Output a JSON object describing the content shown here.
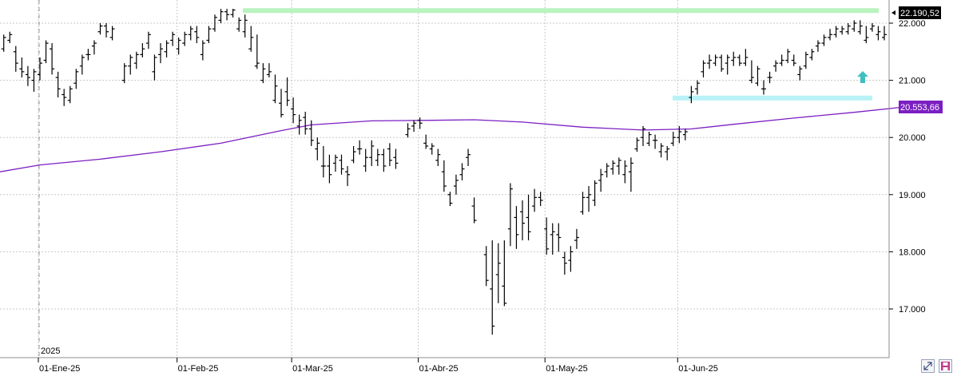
{
  "colors": {
    "ohlc": "#000000",
    "ma": "#7b1fc2",
    "resistance": "#b9f3bf",
    "support": "#b8f2f7",
    "arrow": "#3fbfc0",
    "grid": "#c8c8c8",
    "price_badge": "#000000",
    "ma_badge": "#7b1fc2"
  },
  "icons": {
    "arrow": "up-arrow-icon",
    "expand": "diagonal-arrows-icon",
    "save": "save-icon"
  },
  "chart_data": {
    "type": "ohlc",
    "title": "",
    "xlabel": "",
    "ylabel": "",
    "ylim": [
      16350,
      22550
    ],
    "y_ticks": [
      "17.000",
      "18.000",
      "19.000",
      "20.000",
      "21.000",
      "22.000"
    ],
    "y_tick_values": [
      17000,
      18000,
      19000,
      20000,
      21000,
      22000
    ],
    "x_ticks": [
      "01-Ene-25",
      "01-Feb-25",
      "01-Mar-25",
      "01-Abr-25",
      "01-May-25",
      "01-Jun-25"
    ],
    "year_label": "2025",
    "grid": true,
    "last_price_label": "22.190,52",
    "ma_label": "20.553,66",
    "resistance_level": 22220,
    "support_level": 20690,
    "series": [
      {
        "type": "ohlc",
        "values": [
          [
            -7,
            21500,
            21720,
            21300,
            21550
          ],
          [
            -6,
            21550,
            21800,
            21500,
            21750
          ],
          [
            -5,
            21700,
            21850,
            21650,
            21800
          ],
          [
            -4,
            21500,
            21600,
            21150,
            21300
          ],
          [
            -3,
            21200,
            21400,
            21050,
            21150
          ],
          [
            -2,
            21100,
            21250,
            20900,
            21050
          ],
          [
            -1,
            21000,
            21200,
            20800,
            21150
          ],
          [
            0,
            21100,
            21400,
            21000,
            21300
          ],
          [
            1,
            21350,
            21700,
            21300,
            21650
          ],
          [
            2,
            21550,
            21650,
            21100,
            21200
          ],
          [
            3,
            21050,
            21150,
            20700,
            20850
          ],
          [
            4,
            20750,
            20850,
            20550,
            20700
          ],
          [
            5,
            20650,
            20900,
            20600,
            20850
          ],
          [
            6,
            20950,
            21200,
            20850,
            21150
          ],
          [
            7,
            21250,
            21450,
            21100,
            21400
          ],
          [
            8,
            21450,
            21550,
            21350,
            21450
          ],
          [
            9,
            21600,
            21700,
            21450,
            21650
          ],
          [
            10,
            21850,
            22000,
            21800,
            21950
          ],
          [
            11,
            21950,
            22000,
            21750,
            21850
          ],
          [
            12,
            21750,
            21950,
            21700,
            21900
          ],
          [
            14,
            21000,
            21300,
            20950,
            21250
          ],
          [
            15,
            21250,
            21450,
            21100,
            21400
          ],
          [
            16,
            21300,
            21500,
            21200,
            21450
          ],
          [
            17,
            21450,
            21650,
            21400,
            21550
          ],
          [
            18,
            21650,
            21850,
            21550,
            21800
          ],
          [
            19,
            21150,
            21450,
            21000,
            21400
          ],
          [
            20,
            21450,
            21650,
            21300,
            21550
          ],
          [
            21,
            21500,
            21700,
            21400,
            21650
          ],
          [
            22,
            21700,
            21850,
            21600,
            21800
          ],
          [
            23,
            21550,
            21750,
            21450,
            21700
          ],
          [
            24,
            21650,
            21850,
            21600,
            21800
          ],
          [
            25,
            21800,
            21950,
            21700,
            21900
          ],
          [
            26,
            21850,
            21950,
            21650,
            21750
          ],
          [
            27,
            21450,
            21700,
            21350,
            21650
          ],
          [
            28,
            21700,
            21950,
            21650,
            21900
          ],
          [
            29,
            21900,
            22150,
            21850,
            22100
          ],
          [
            30,
            22050,
            22250,
            22000,
            22200
          ],
          [
            31,
            22200,
            22250,
            22050,
            22150
          ],
          [
            32,
            22150,
            22250,
            22100,
            22230
          ],
          [
            33,
            21900,
            22100,
            21850,
            22050
          ],
          [
            34,
            21850,
            22150,
            21750,
            22050
          ],
          [
            35,
            21550,
            21950,
            21500,
            21750
          ],
          [
            36,
            21250,
            21800,
            21200,
            21300
          ],
          [
            37,
            21000,
            21300,
            20950,
            21200
          ],
          [
            38,
            21100,
            21300,
            21050,
            21150
          ],
          [
            39,
            20650,
            21100,
            20600,
            20900
          ],
          [
            40,
            20600,
            20850,
            20350,
            20400
          ],
          [
            41,
            20800,
            21050,
            20550,
            20650
          ],
          [
            42,
            20500,
            20700,
            20250,
            20400
          ],
          [
            43,
            20200,
            20400,
            20050,
            20300
          ],
          [
            44,
            20350,
            20450,
            20050,
            20150
          ],
          [
            45,
            20150,
            20300,
            19850,
            19950
          ],
          [
            46,
            19800,
            20000,
            19600,
            19900
          ],
          [
            47,
            19500,
            19850,
            19300,
            19500
          ],
          [
            48,
            19500,
            19700,
            19200,
            19350
          ],
          [
            49,
            19550,
            19700,
            19400,
            19650
          ],
          [
            50,
            19600,
            19700,
            19350,
            19450
          ],
          [
            51,
            19400,
            19500,
            19150,
            19350
          ],
          [
            52,
            19600,
            19850,
            19550,
            19750
          ],
          [
            53,
            19800,
            19950,
            19700,
            19800
          ],
          [
            54,
            19500,
            19800,
            19400,
            19650
          ],
          [
            55,
            19650,
            19950,
            19500,
            19850
          ],
          [
            56,
            19600,
            19800,
            19500,
            19700
          ],
          [
            57,
            19700,
            19800,
            19400,
            19500
          ],
          [
            58,
            19800,
            19900,
            19500,
            19600
          ],
          [
            59,
            19650,
            19800,
            19450,
            19550
          ],
          [
            61,
            20050,
            20250,
            20000,
            20150
          ],
          [
            62,
            20200,
            20300,
            20100,
            20250
          ],
          [
            63,
            20300,
            20350,
            20150,
            20250
          ],
          [
            64,
            19900,
            20050,
            19800,
            19850
          ],
          [
            65,
            19800,
            19900,
            19700,
            19850
          ],
          [
            66,
            19600,
            19800,
            19500,
            19700
          ],
          [
            67,
            19400,
            19600,
            19050,
            19150
          ],
          [
            68,
            19000,
            19050,
            18800,
            18850
          ],
          [
            69,
            19150,
            19350,
            19000,
            19250
          ],
          [
            70,
            19350,
            19550,
            19250,
            19450
          ],
          [
            71,
            19650,
            19800,
            19500,
            19700
          ],
          [
            72,
            18800,
            18950,
            18500,
            18550
          ],
          [
            74,
            17950,
            18100,
            17400,
            17500
          ],
          [
            75,
            17350,
            18200,
            16550,
            16700
          ],
          [
            76,
            17600,
            18150,
            17100,
            17800
          ],
          [
            77,
            17400,
            18200,
            17050,
            17100
          ],
          [
            78,
            18400,
            19200,
            18100,
            19100
          ],
          [
            79,
            18600,
            18800,
            18050,
            18300
          ],
          [
            80,
            18700,
            18900,
            18200,
            18500
          ],
          [
            81,
            18600,
            19000,
            18200,
            18350
          ],
          [
            82,
            18800,
            19100,
            18700,
            18950
          ],
          [
            83,
            18950,
            19050,
            18800,
            18900
          ],
          [
            84,
            18400,
            18600,
            17950,
            18050
          ],
          [
            85,
            18300,
            18500,
            17950,
            18350
          ],
          [
            86,
            18300,
            18500,
            18000,
            18250
          ],
          [
            87,
            17900,
            18000,
            17600,
            17800
          ],
          [
            88,
            17850,
            18100,
            17650,
            18000
          ],
          [
            89,
            18200,
            18400,
            18050,
            18250
          ],
          [
            90,
            18700,
            19050,
            18650,
            18950
          ],
          [
            91,
            18950,
            19150,
            18700,
            19000
          ],
          [
            92,
            18900,
            19250,
            18800,
            19200
          ],
          [
            93,
            19250,
            19450,
            19050,
            19350
          ],
          [
            94,
            19400,
            19550,
            19300,
            19500
          ],
          [
            95,
            19450,
            19600,
            19350,
            19550
          ],
          [
            96,
            19500,
            19650,
            19350,
            19600
          ],
          [
            97,
            19350,
            19600,
            19200,
            19500
          ],
          [
            98,
            19400,
            19650,
            19050,
            19550
          ],
          [
            99,
            19800,
            20000,
            19750,
            19950
          ],
          [
            100,
            20000,
            20200,
            19850,
            20150
          ],
          [
            101,
            19900,
            20100,
            19850,
            20050
          ],
          [
            102,
            19950,
            20050,
            19800,
            19950
          ],
          [
            103,
            19750,
            19900,
            19650,
            19850
          ],
          [
            104,
            19750,
            19850,
            19600,
            19800
          ],
          [
            105,
            19900,
            20100,
            19850,
            20000
          ],
          [
            106,
            20000,
            20200,
            19900,
            20100
          ],
          [
            107,
            20050,
            20150,
            19950,
            20100
          ],
          [
            108,
            20700,
            20900,
            20600,
            20800
          ],
          [
            109,
            20850,
            21000,
            20750,
            20950
          ],
          [
            110,
            21150,
            21350,
            21050,
            21300
          ],
          [
            111,
            21300,
            21450,
            21200,
            21350
          ],
          [
            112,
            21300,
            21450,
            21250,
            21400
          ],
          [
            113,
            21400,
            21450,
            21150,
            21200
          ],
          [
            114,
            21300,
            21450,
            21100,
            21400
          ],
          [
            115,
            21350,
            21500,
            21250,
            21400
          ],
          [
            116,
            21400,
            21450,
            21250,
            21300
          ],
          [
            117,
            21300,
            21550,
            21250,
            21400
          ],
          [
            118,
            21000,
            21350,
            20950,
            21050
          ],
          [
            119,
            20950,
            21250,
            20900,
            21200
          ],
          [
            120,
            20850,
            21000,
            20750,
            20850
          ],
          [
            121,
            21050,
            21150,
            20950,
            21050
          ],
          [
            122,
            21250,
            21350,
            21150,
            21300
          ],
          [
            123,
            21300,
            21450,
            21250,
            21350
          ],
          [
            124,
            21350,
            21550,
            21300,
            21500
          ],
          [
            125,
            21350,
            21450,
            21250,
            21300
          ],
          [
            126,
            21100,
            21250,
            21000,
            21200
          ],
          [
            127,
            21250,
            21500,
            21200,
            21450
          ],
          [
            128,
            21400,
            21550,
            21350,
            21500
          ],
          [
            129,
            21600,
            21700,
            21500,
            21650
          ],
          [
            130,
            21650,
            21800,
            21600,
            21750
          ],
          [
            131,
            21750,
            21900,
            21700,
            21800
          ],
          [
            132,
            21800,
            21950,
            21750,
            21900
          ],
          [
            133,
            21850,
            21950,
            21800,
            21900
          ],
          [
            134,
            21850,
            22000,
            21800,
            21950
          ],
          [
            135,
            21900,
            22050,
            21850,
            22000
          ],
          [
            136,
            21850,
            22050,
            21800,
            21950
          ],
          [
            137,
            21700,
            21950,
            21650,
            21750
          ],
          [
            138,
            21900,
            22000,
            21850,
            21950
          ],
          [
            139,
            21800,
            21950,
            21700,
            21850
          ],
          [
            140,
            21750,
            21950,
            21700,
            21800
          ],
          [
            141,
            21600,
            21850,
            21550,
            21800
          ],
          [
            142,
            21600,
            21900,
            21500,
            21650
          ],
          [
            143,
            21600,
            21950,
            21550,
            21900
          ],
          [
            144,
            22050,
            22250,
            22000,
            22190
          ]
        ]
      },
      {
        "type": "line",
        "values": [
          [
            -7,
            19400
          ],
          [
            0,
            19520
          ],
          [
            10,
            19620
          ],
          [
            20,
            19750
          ],
          [
            30,
            19900
          ],
          [
            40,
            20120
          ],
          [
            45,
            20220
          ],
          [
            55,
            20290
          ],
          [
            65,
            20300
          ],
          [
            72,
            20310
          ],
          [
            80,
            20270
          ],
          [
            90,
            20180
          ],
          [
            100,
            20130
          ],
          [
            108,
            20150
          ],
          [
            115,
            20230
          ],
          [
            125,
            20340
          ],
          [
            135,
            20440
          ],
          [
            144,
            20540
          ]
        ]
      }
    ]
  }
}
